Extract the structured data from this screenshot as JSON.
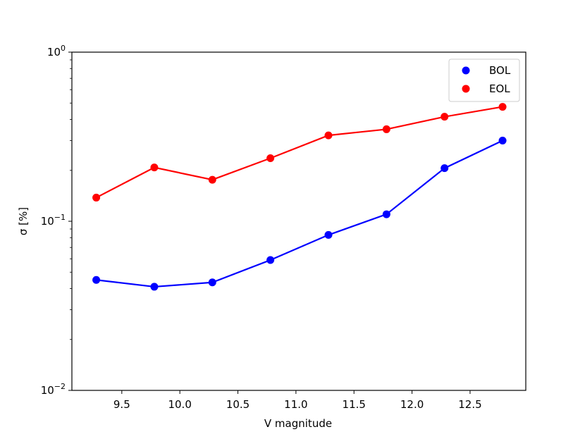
{
  "chart_data": {
    "type": "line",
    "xlabel": "V magnitude",
    "ylabel": "σ [%]",
    "yscale": "log",
    "xlim": [
      9.07,
      12.98
    ],
    "ylim": [
      0.01,
      1.0
    ],
    "x": [
      9.28,
      9.78,
      10.28,
      10.78,
      11.28,
      11.78,
      12.28,
      12.78
    ],
    "x_ticks": [
      {
        "value": 9.5,
        "label": "9.5"
      },
      {
        "value": 10.0,
        "label": "10.0"
      },
      {
        "value": 10.5,
        "label": "10.5"
      },
      {
        "value": 11.0,
        "label": "11.0"
      },
      {
        "value": 11.5,
        "label": "11.5"
      },
      {
        "value": 12.0,
        "label": "12.0"
      },
      {
        "value": 12.5,
        "label": "12.5"
      }
    ],
    "y_ticks": [
      {
        "value": 1.0,
        "base": "10",
        "exp": "0"
      },
      {
        "value": 0.1,
        "base": "10",
        "exp": "−1"
      },
      {
        "value": 0.01,
        "base": "10",
        "exp": "−2"
      }
    ],
    "series": [
      {
        "name": "BOL",
        "color": "#0000ff",
        "values": [
          0.045,
          0.041,
          0.0435,
          0.059,
          0.083,
          0.11,
          0.206,
          0.3
        ]
      },
      {
        "name": "EOL",
        "color": "#ff0000",
        "values": [
          0.138,
          0.208,
          0.176,
          0.236,
          0.322,
          0.35,
          0.415,
          0.475
        ]
      }
    ],
    "grid": false,
    "legend_position": "upper-right"
  }
}
